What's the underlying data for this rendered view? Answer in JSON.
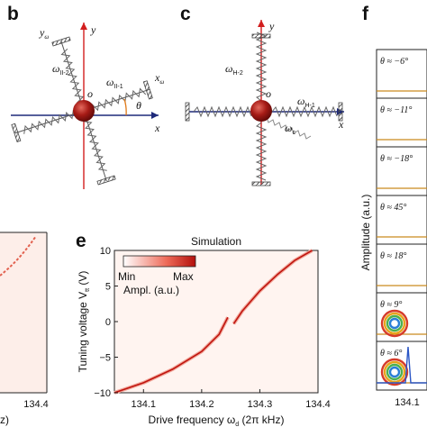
{
  "panels": {
    "b": {
      "label": "b",
      "axis_x": "x",
      "axis_y": "y",
      "rot_x": "x",
      "rot_x_sub": "ω",
      "rot_y": "y",
      "rot_y_sub": "ω",
      "spring1": "ω",
      "spring1_sub": "II-1",
      "spring2": "ω",
      "spring2_sub": "II-2",
      "origin": "o",
      "angle": "θ"
    },
    "c": {
      "label": "c",
      "axis_x": "x",
      "axis_y": "y",
      "spring1": "ω",
      "spring1_sub": "H-1",
      "spring2": "ω",
      "spring2_sub": "H-2",
      "spring_c": "ω",
      "spring_c_sub": "c",
      "origin": "o"
    },
    "d_partial": {
      "tick": "134.4",
      "xlabel_fragment": "z)"
    },
    "e": {
      "label": "e",
      "title": "Simulation",
      "xlabel": "Drive frequency ω",
      "xlabel_sub": "d",
      "xlabel_unit": " (2π kHz)",
      "ylabel": "Tuning voltage V",
      "ylabel_sub": "tt",
      "ylabel_unit": " (V)",
      "colorbar": {
        "min": "Min",
        "max": "Max",
        "label": "Ampl. (a.u.)",
        "color_low": "#ffffff",
        "color_high": "#c0150f"
      }
    },
    "f": {
      "label": "f",
      "ylabel": "Amplitude (a.u.)",
      "xtick": "134.1",
      "angles": [
        "θ ≈ −6°",
        "θ ≈ −11°",
        "θ ≈ −18°",
        "θ ≈ 45°",
        "θ ≈ 18°",
        "θ ≈ 9°",
        "θ ≈ 6°"
      ]
    }
  },
  "chart_data": {
    "type": "heatmap",
    "title": "Simulation",
    "xlabel": "Drive frequency ωd (2π kHz)",
    "ylabel": "Tuning voltage Vtt (V)",
    "xlim": [
      134.05,
      134.4
    ],
    "ylim": [
      -10,
      10
    ],
    "xticks": [
      "134.1",
      "134.2",
      "134.3",
      "134.4"
    ],
    "yticks": [
      "−10",
      "−5",
      "0",
      "5",
      "10"
    ],
    "series": [
      {
        "x": [
          134.05,
          134.1,
          134.15,
          134.2,
          134.23,
          134.245
        ],
        "y": [
          -10,
          -8.6,
          -6.7,
          -4.2,
          -1.8,
          0.6
        ]
      },
      {
        "x": [
          134.255,
          134.27,
          134.3,
          134.33,
          134.36,
          134.39
        ],
        "y": [
          -0.3,
          1.5,
          4.3,
          6.6,
          8.6,
          10
        ]
      }
    ]
  }
}
